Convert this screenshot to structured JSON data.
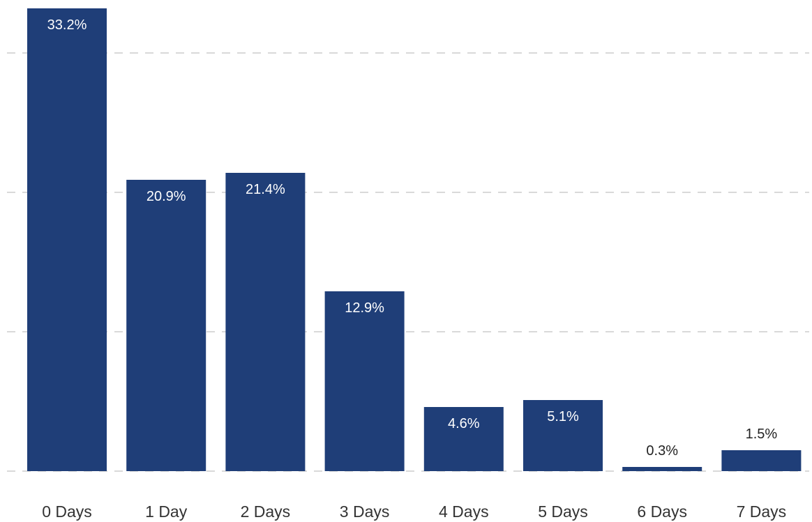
{
  "chart_data": {
    "type": "bar",
    "categories": [
      "0 Days",
      "1 Day",
      "2 Days",
      "3 Days",
      "4 Days",
      "5 Days",
      "6 Days",
      "7 Days"
    ],
    "values": [
      33.2,
      20.9,
      21.4,
      12.9,
      4.6,
      5.1,
      0.3,
      1.5
    ],
    "labels": [
      "33.2%",
      "20.9%",
      "21.4%",
      "12.9%",
      "4.6%",
      "5.1%",
      "0.3%",
      "1.5%"
    ],
    "ylim": [
      0,
      33.2
    ],
    "gridlines": [
      0,
      10,
      20,
      30
    ],
    "grid": true,
    "legend": false,
    "colors": {
      "bar": "#1f3e78",
      "grid": "#d9d9d9"
    }
  }
}
